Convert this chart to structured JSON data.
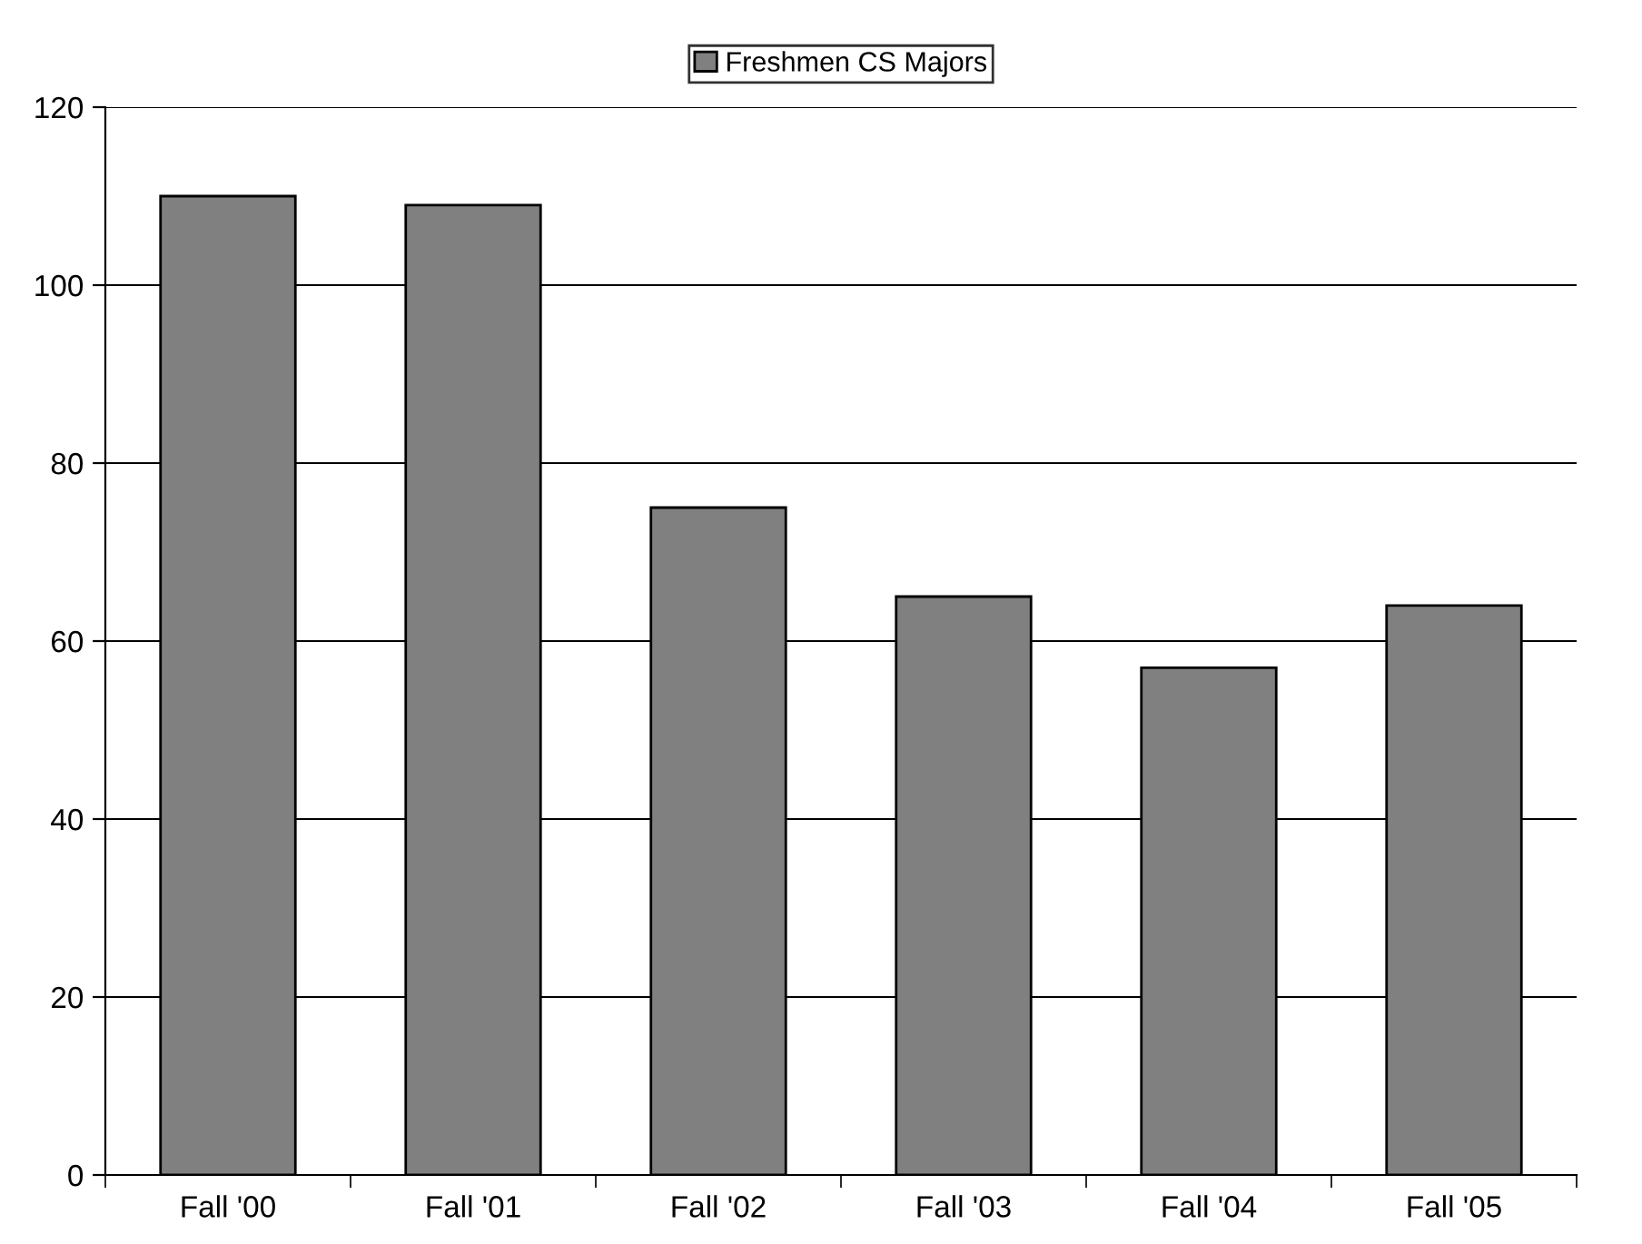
{
  "chart_data": {
    "type": "bar",
    "categories": [
      "Fall '00",
      "Fall '01",
      "Fall '02",
      "Fall '03",
      "Fall '04",
      "Fall '05"
    ],
    "series": [
      {
        "name": "Freshmen CS Majors",
        "color": "#808080",
        "values": [
          110,
          109,
          75,
          65,
          57,
          64
        ]
      }
    ],
    "ylim": [
      0,
      120
    ],
    "yticks": [
      0,
      20,
      40,
      60,
      80,
      100,
      120
    ],
    "grid": "y",
    "legend": "top"
  }
}
